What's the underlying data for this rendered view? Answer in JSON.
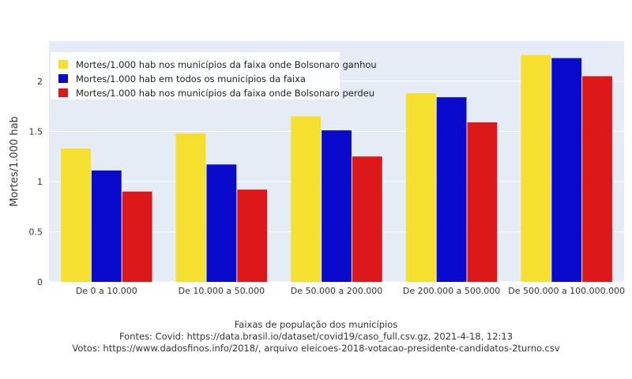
{
  "chart_data": {
    "type": "bar",
    "categories": [
      "De 0 a 10.000",
      "De 10.000 a 50.000",
      "De 50.000 a 200.000",
      "De 200.000 a 500.000",
      "De 500.000 a 100.000.000"
    ],
    "series": [
      {
        "name": "Mortes/1.000 hab nos municípios da faixa onde Bolsonaro ganhou",
        "color": "#f5e030",
        "values": [
          1.33,
          1.48,
          1.65,
          1.88,
          2.26
        ]
      },
      {
        "name": "Mortes/1.000 hab em todos os municípios da faixa",
        "color": "#0a0acc",
        "values": [
          1.11,
          1.17,
          1.51,
          1.84,
          2.23
        ]
      },
      {
        "name": "Mortes/1.000 hab nos municípios da faixa onde Bolsonaro perdeu",
        "color": "#dd1818",
        "values": [
          0.9,
          0.92,
          1.25,
          1.59,
          2.05
        ]
      }
    ],
    "ylabel": "Mortes/1.000 hab",
    "xlabel": "Faixas de população dos municípios",
    "ylim": [
      0,
      2.4
    ],
    "yticks": [
      0,
      0.5,
      1,
      1.5,
      2
    ],
    "ytick_labels": [
      "0",
      "0.5",
      "1",
      "1.5",
      "2"
    ],
    "grid": true,
    "legend_position": "top-left",
    "plot_background": "#e5ecf6"
  },
  "caption": {
    "line1": "Faixas de população dos municípios",
    "line2": "Fontes: Covid: https://data.brasil.io/dataset/covid19/caso_full.csv.gz, 2021-4-18, 12:13",
    "line3": "Votos: https://www.dadosfinos.info/2018/, arquivo eleicoes-2018-votacao-presidente-candidatos-2turno.csv"
  }
}
